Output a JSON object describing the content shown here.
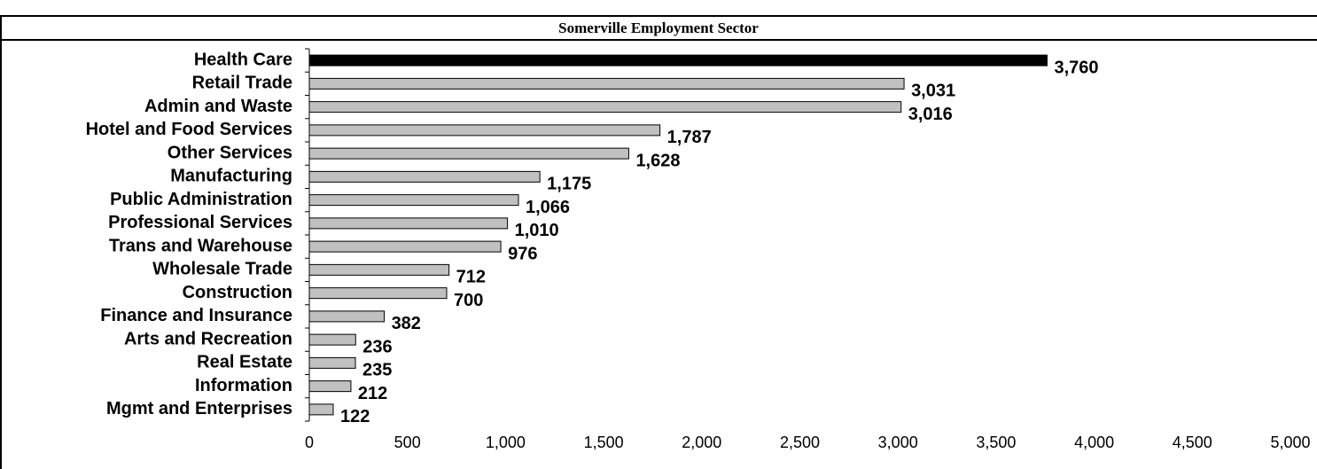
{
  "chart_data": {
    "type": "bar",
    "orientation": "horizontal",
    "title": "Somerville Employment Sector",
    "categories": [
      "Health Care",
      "Retail Trade",
      "Admin and Waste",
      "Hotel and Food Services",
      "Other Services",
      "Manufacturing",
      "Public Administration",
      "Professional Services",
      "Trans and Warehouse",
      "Wholesale Trade",
      "Construction",
      "Finance and Insurance",
      "Arts and Recreation",
      "Real Estate",
      "Information",
      "Mgmt  and Enterprises"
    ],
    "values": [
      3760,
      3031,
      3016,
      1787,
      1628,
      1175,
      1066,
      1010,
      976,
      712,
      700,
      382,
      236,
      235,
      212,
      122
    ],
    "value_labels": [
      "3,760",
      "3,031",
      "3,016",
      "1,787",
      "1,628",
      "1,175",
      "1,066",
      "1,010",
      "976",
      "712",
      "700",
      "382",
      "236",
      "235",
      "212",
      "122"
    ],
    "colors": [
      "#000000",
      "#c0c0c0",
      "#c0c0c0",
      "#c0c0c0",
      "#c0c0c0",
      "#c0c0c0",
      "#c0c0c0",
      "#c0c0c0",
      "#c0c0c0",
      "#c0c0c0",
      "#c0c0c0",
      "#c0c0c0",
      "#c0c0c0",
      "#c0c0c0",
      "#c0c0c0",
      "#c0c0c0"
    ],
    "xlim": [
      0,
      5000
    ],
    "xticks": [
      0,
      500,
      {
        "value": 1000,
        "label": "1,000"
      },
      {
        "value": 1500,
        "label": "1,500"
      },
      {
        "value": 2000,
        "label": "2,000"
      },
      {
        "value": 2500,
        "label": "2,500"
      },
      {
        "value": 3000,
        "label": "3,000"
      },
      {
        "value": 3500,
        "label": "3,500"
      },
      {
        "value": 4000,
        "label": "4,000"
      },
      {
        "value": 4500,
        "label": "4,500"
      },
      {
        "value": 5000,
        "label": "5,000"
      }
    ],
    "grid": false
  }
}
